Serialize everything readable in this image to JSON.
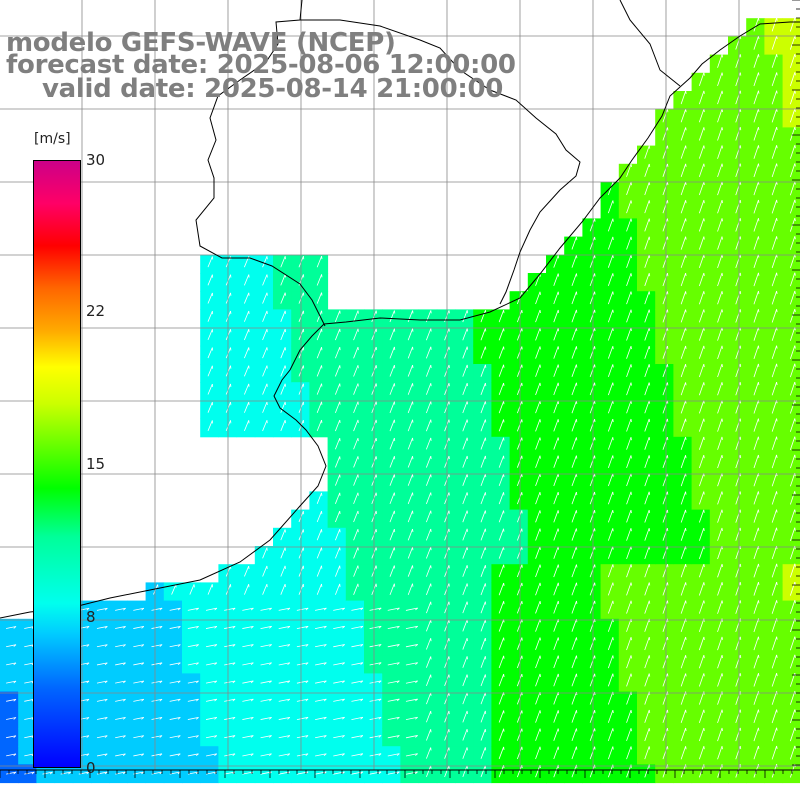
{
  "title": {
    "line1": "modelo GEFS-WAVE (NCEP)",
    "line2": "forecast date: 2025-08-06 12:00:00",
    "line3": "valid date: 2025-08-14 21:00:00"
  },
  "colorbar": {
    "unit": "[m/s]",
    "tick_labels": [
      "30",
      "22",
      "15",
      "8",
      "0"
    ],
    "tick_values": [
      30,
      22,
      15,
      8,
      0
    ],
    "min": 0,
    "max": 30,
    "colors": [
      "#0000ff",
      "#0066ff",
      "#00ccff",
      "#00ffee",
      "#00ff99",
      "#00ff00",
      "#66ff00",
      "#ccff00",
      "#ffff00",
      "#ffaa00",
      "#ff6600",
      "#ff0000",
      "#ff0066",
      "#cc0088"
    ]
  },
  "map": {
    "variable": "wind speed",
    "vector_color": "#ffffff",
    "coastline_color": "#000000",
    "grid_color": "#888888",
    "land_color": "#ffffff"
  }
}
